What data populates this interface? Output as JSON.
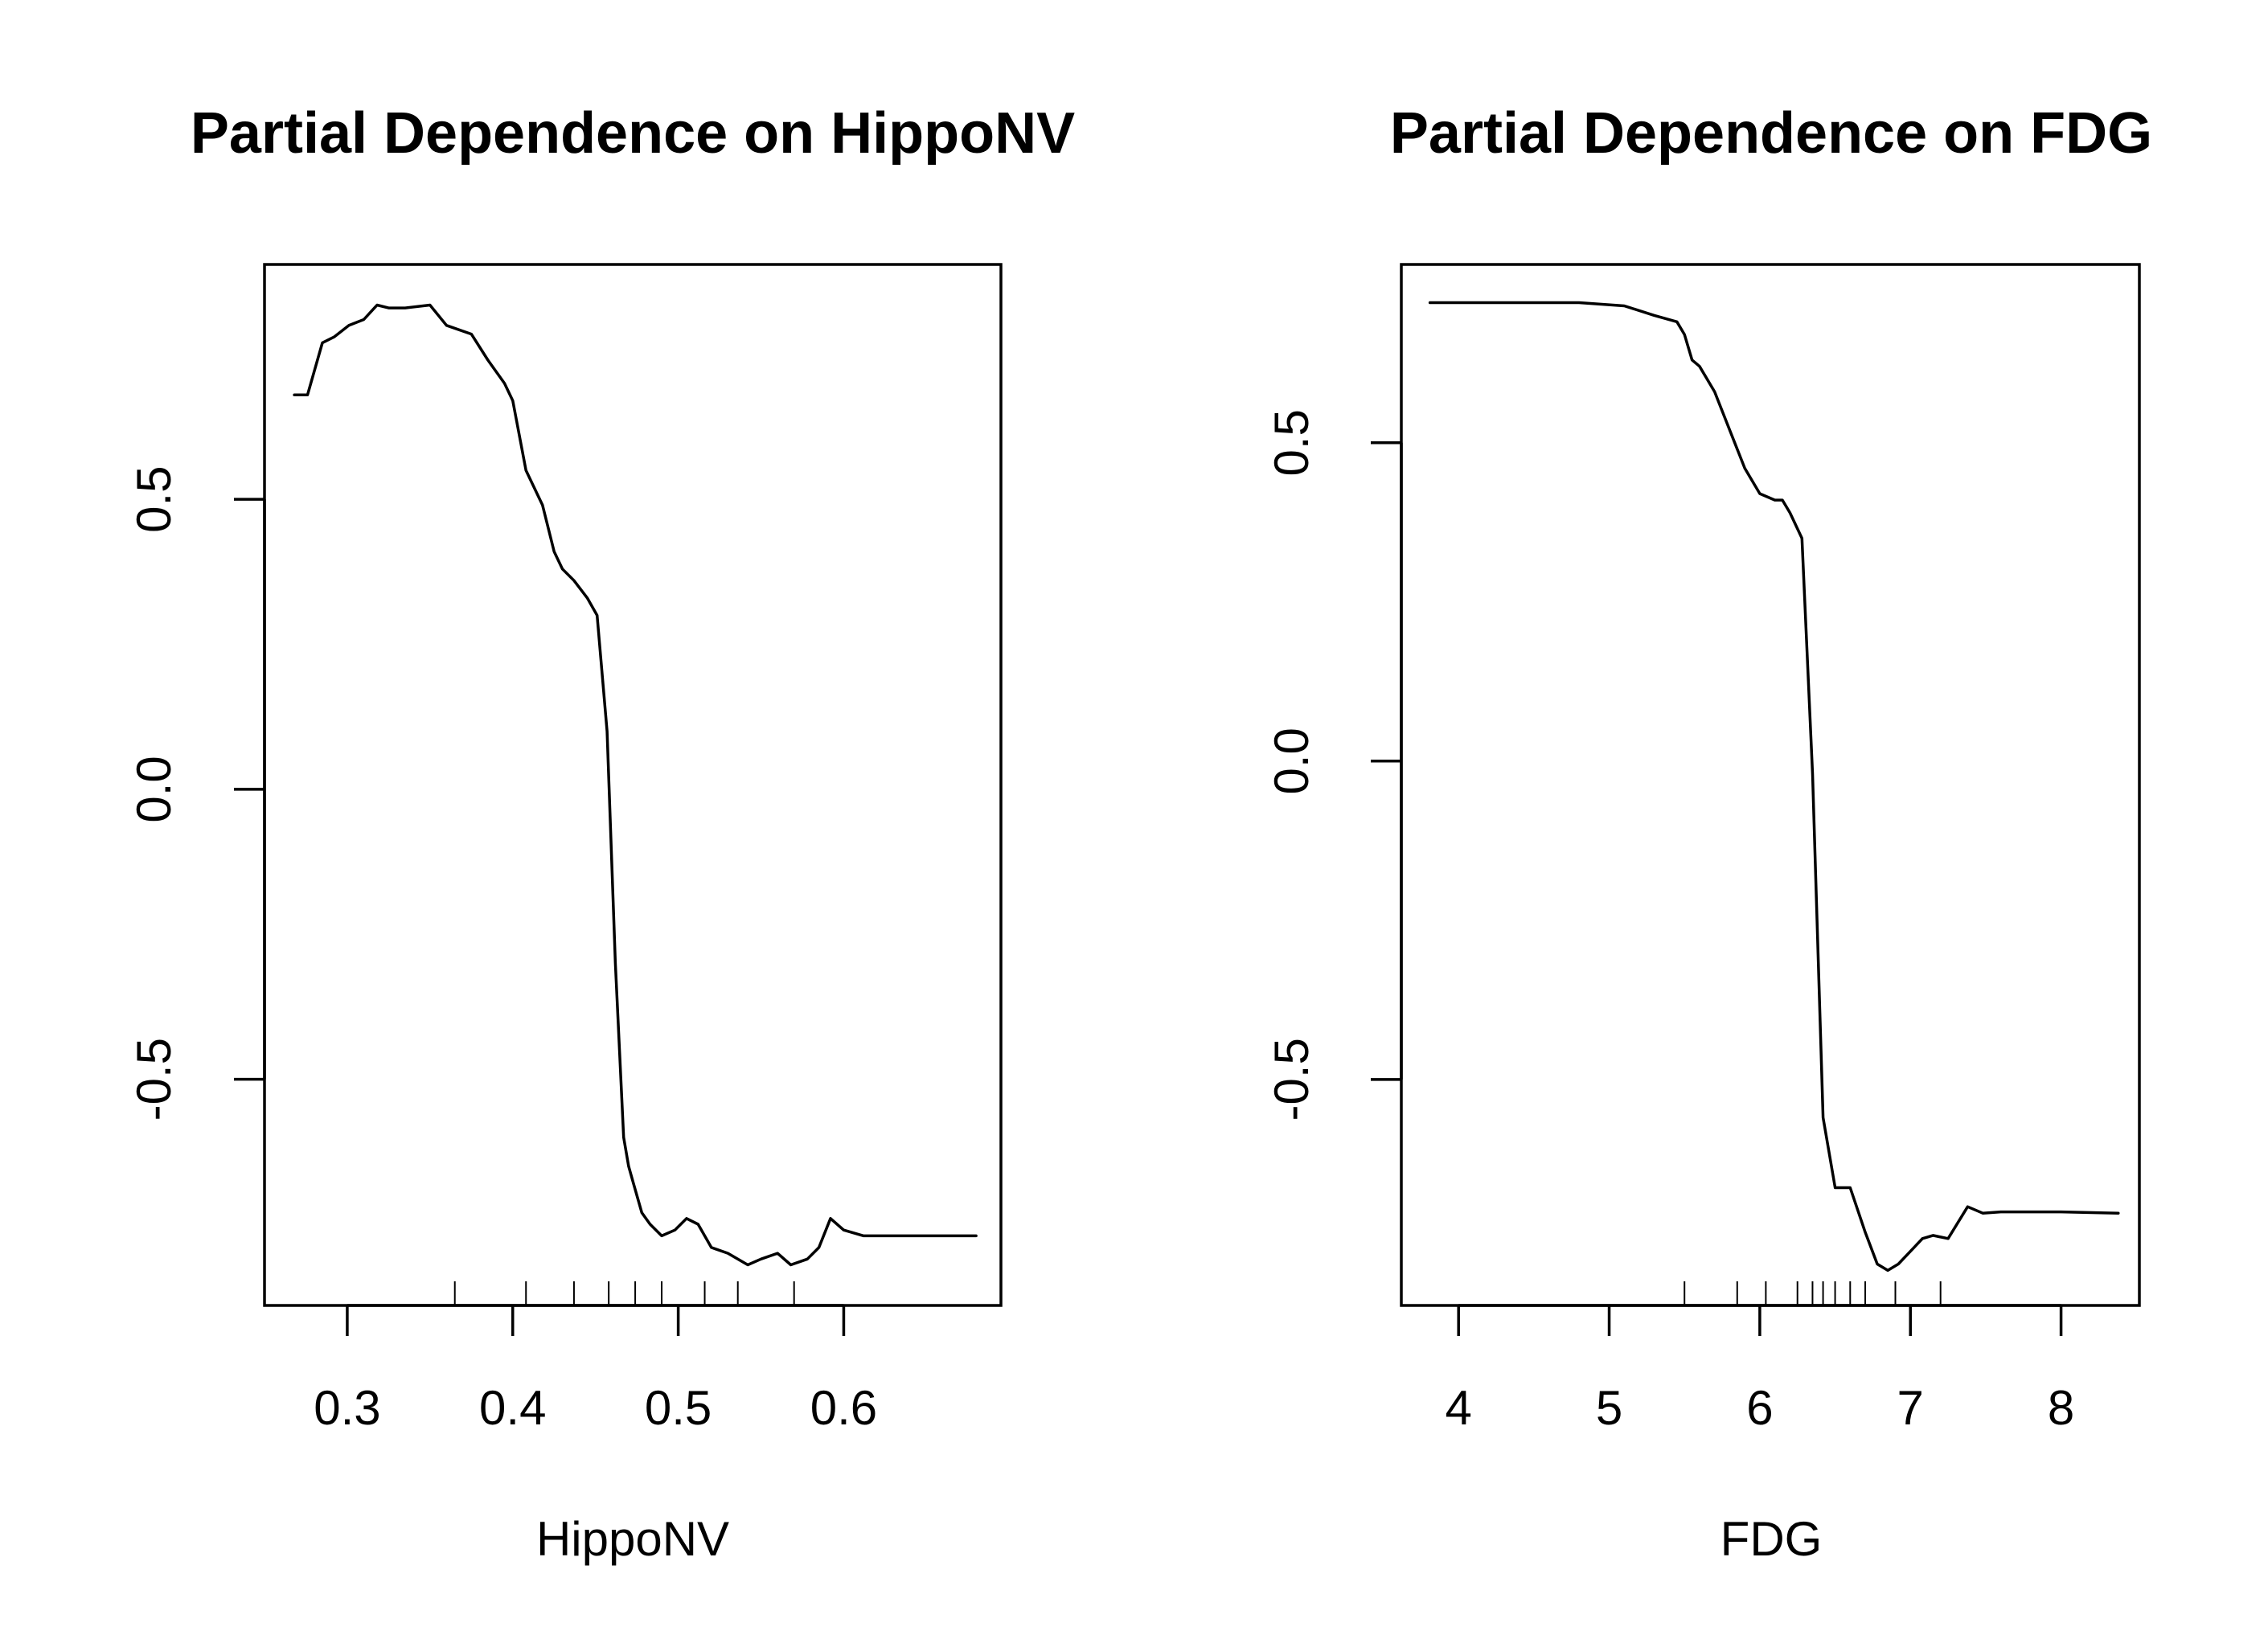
{
  "chart_data": [
    {
      "type": "line",
      "title": "Partial Dependence on HippoNV",
      "xlabel": "HippoNV",
      "ylabel": "",
      "xlim": [
        0.25,
        0.695
      ],
      "ylim": [
        -0.89,
        0.905
      ],
      "xticks": [
        0.3,
        0.4,
        0.5,
        0.6
      ],
      "xtick_labels": [
        "0.3",
        "0.4",
        "0.5",
        "0.6"
      ],
      "yticks": [
        -0.5,
        0.0,
        0.5
      ],
      "ytick_labels": [
        "-0.5",
        "0.0",
        "0.5"
      ],
      "rug": [
        0.365,
        0.408,
        0.437,
        0.458,
        0.474,
        0.49,
        0.516,
        0.536,
        0.57
      ],
      "grid": false,
      "series": [
        {
          "name": "partial dependence",
          "x": [
            0.268,
            0.276,
            0.285,
            0.292,
            0.301,
            0.31,
            0.318,
            0.325,
            0.335,
            0.35,
            0.36,
            0.375,
            0.385,
            0.395,
            0.4,
            0.408,
            0.418,
            0.425,
            0.43,
            0.437,
            0.445,
            0.451,
            0.457,
            0.462,
            0.467,
            0.47,
            0.473,
            0.478,
            0.483,
            0.49,
            0.498,
            0.505,
            0.512,
            0.52,
            0.53,
            0.542,
            0.55,
            0.56,
            0.568,
            0.578,
            0.585,
            0.592,
            0.6,
            0.612,
            0.64,
            0.66,
            0.68
          ],
          "y": [
            0.68,
            0.68,
            0.77,
            0.78,
            0.8,
            0.81,
            0.835,
            0.83,
            0.83,
            0.835,
            0.8,
            0.785,
            0.74,
            0.7,
            0.67,
            0.55,
            0.49,
            0.41,
            0.38,
            0.36,
            0.33,
            0.3,
            0.1,
            -0.3,
            -0.6,
            -0.65,
            -0.68,
            -0.73,
            -0.75,
            -0.77,
            -0.76,
            -0.74,
            -0.75,
            -0.79,
            -0.8,
            -0.82,
            -0.81,
            -0.8,
            -0.82,
            -0.81,
            -0.79,
            -0.74,
            -0.76,
            -0.77,
            -0.77,
            -0.77,
            -0.77
          ]
        }
      ]
    },
    {
      "type": "line",
      "title": "Partial Dependence on FDG",
      "xlabel": "FDG",
      "ylabel": "",
      "xlim": [
        3.62,
        8.52
      ],
      "ylim": [
        -0.855,
        0.78
      ],
      "xticks": [
        4,
        5,
        6,
        7,
        8
      ],
      "xtick_labels": [
        "4",
        "5",
        "6",
        "7",
        "8"
      ],
      "yticks": [
        -0.5,
        0.0,
        0.5
      ],
      "ytick_labels": [
        "-0.5",
        "0.0",
        "0.5"
      ],
      "rug": [
        5.5,
        5.85,
        6.04,
        6.25,
        6.35,
        6.42,
        6.5,
        6.6,
        6.7,
        6.9,
        7.2
      ],
      "grid": false,
      "series": [
        {
          "name": "partial dependence",
          "x": [
            3.81,
            4.0,
            4.5,
            4.8,
            5.1,
            5.3,
            5.45,
            5.5,
            5.55,
            5.6,
            5.7,
            5.8,
            5.9,
            6.0,
            6.1,
            6.15,
            6.2,
            6.28,
            6.35,
            6.42,
            6.5,
            6.6,
            6.7,
            6.78,
            6.85,
            6.92,
            7.0,
            7.08,
            7.15,
            7.25,
            7.38,
            7.48,
            7.6,
            8.0,
            8.38
          ],
          "y": [
            0.72,
            0.72,
            0.72,
            0.72,
            0.715,
            0.7,
            0.69,
            0.67,
            0.63,
            0.62,
            0.58,
            0.52,
            0.46,
            0.42,
            0.41,
            0.41,
            0.39,
            0.35,
            -0.02,
            -0.56,
            -0.67,
            -0.67,
            -0.74,
            -0.79,
            -0.8,
            -0.79,
            -0.77,
            -0.75,
            -0.745,
            -0.75,
            -0.7,
            -0.71,
            -0.708,
            -0.708,
            -0.71
          ]
        }
      ]
    }
  ]
}
